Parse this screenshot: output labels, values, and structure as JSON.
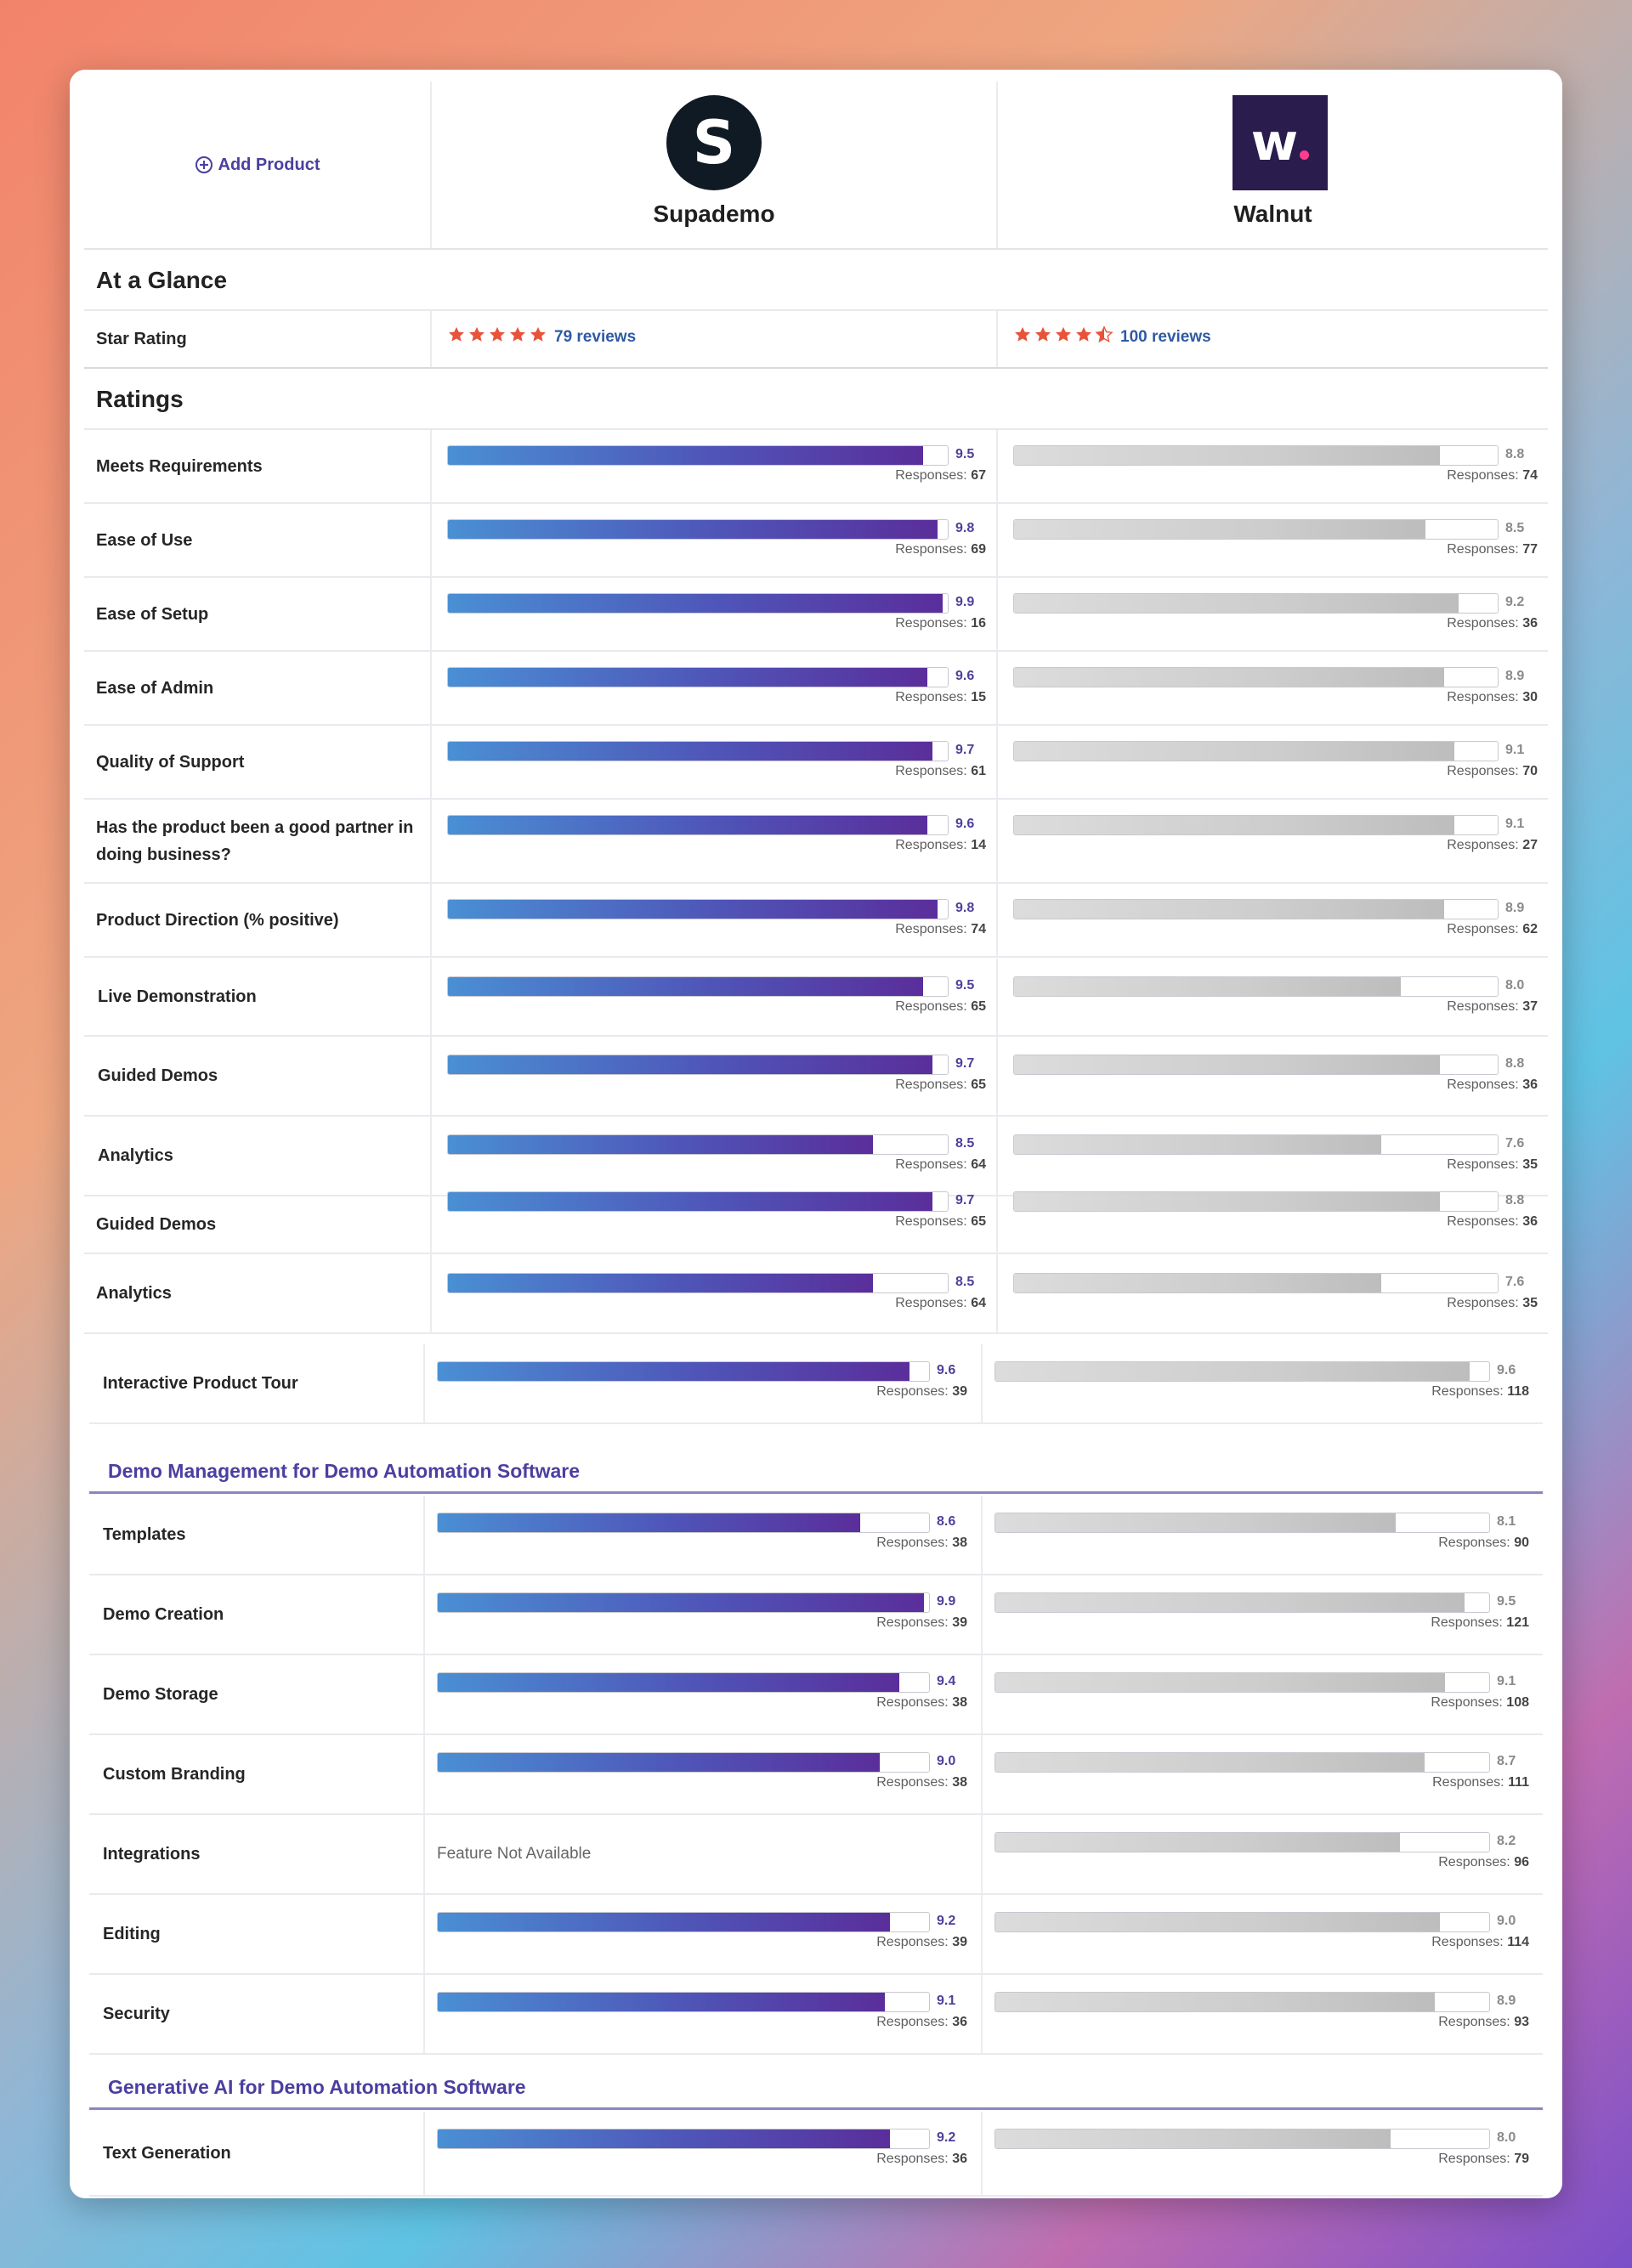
{
  "header": {
    "add_product_label": "Add Product",
    "products": [
      {
        "name": "Supademo",
        "logo_letter": "S",
        "logo_color": "#0f1a24"
      },
      {
        "name": "Walnut",
        "logo_letter": "w",
        "logo_color": "#2a1c4d",
        "logo_dot_color": "#ff3d8f"
      }
    ]
  },
  "glance": {
    "title": "At a Glance",
    "star_rating_label": "Star Rating",
    "a": {
      "stars": 5,
      "reviews": "79 reviews"
    },
    "b": {
      "stars": 4.5,
      "reviews": "100 reviews"
    },
    "star_color": "#e8533a"
  },
  "ratings_title": "Ratings",
  "ratings": [
    {
      "label": "Meets Requirements",
      "a": {
        "score": "9.5",
        "responses": "67"
      },
      "b": {
        "score": "8.8",
        "responses": "74"
      }
    },
    {
      "label": "Ease of Use",
      "a": {
        "score": "9.8",
        "responses": "69"
      },
      "b": {
        "score": "8.5",
        "responses": "77"
      }
    },
    {
      "label": "Ease of Setup",
      "a": {
        "score": "9.9",
        "responses": "16"
      },
      "b": {
        "score": "9.2",
        "responses": "36"
      }
    },
    {
      "label": "Ease of Admin",
      "a": {
        "score": "9.6",
        "responses": "15"
      },
      "b": {
        "score": "8.9",
        "responses": "30"
      }
    },
    {
      "label": "Quality of Support",
      "a": {
        "score": "9.7",
        "responses": "61"
      },
      "b": {
        "score": "9.1",
        "responses": "70"
      }
    },
    {
      "label": "Has the product been a good partner in doing business?",
      "a": {
        "score": "9.6",
        "responses": "14"
      },
      "b": {
        "score": "9.1",
        "responses": "27"
      }
    },
    {
      "label": "Product Direction (% positive)",
      "a": {
        "score": "9.8",
        "responses": "74"
      },
      "b": {
        "score": "8.9",
        "responses": "62"
      }
    }
  ],
  "demo_rows": [
    {
      "label": "Live Demonstration",
      "a": {
        "score": "9.5",
        "responses": "65"
      },
      "b": {
        "score": "8.0",
        "responses": "37"
      }
    },
    {
      "label": "Guided Demos",
      "a": {
        "score": "9.7",
        "responses": "65"
      },
      "b": {
        "score": "8.8",
        "responses": "36"
      }
    },
    {
      "label": "Analytics",
      "a": {
        "score": "8.5",
        "responses": "64"
      },
      "b": {
        "score": "7.6",
        "responses": "35"
      }
    }
  ],
  "overlap_rows": [
    {
      "label": "Guided Demos",
      "a": {
        "score": "9.7",
        "responses": "65"
      },
      "b": {
        "score": "8.8",
        "responses": "36"
      }
    },
    {
      "label": "Analytics",
      "a": {
        "score": "8.5",
        "responses": "64"
      },
      "b": {
        "score": "7.6",
        "responses": "35"
      }
    }
  ],
  "tour_row": {
    "label": "Interactive Product Tour",
    "a": {
      "score": "9.6",
      "responses": "39"
    },
    "b": {
      "score": "9.6",
      "responses": "118"
    }
  },
  "demo_mgmt": {
    "title": "Demo Management for Demo Automation Software",
    "rows": [
      {
        "label": "Templates",
        "a": {
          "score": "8.6",
          "responses": "38"
        },
        "b": {
          "score": "8.1",
          "responses": "90"
        }
      },
      {
        "label": "Demo Creation",
        "a": {
          "score": "9.9",
          "responses": "39"
        },
        "b": {
          "score": "9.5",
          "responses": "121"
        }
      },
      {
        "label": "Demo Storage",
        "a": {
          "score": "9.4",
          "responses": "38"
        },
        "b": {
          "score": "9.1",
          "responses": "108"
        }
      },
      {
        "label": "Custom Branding",
        "a": {
          "score": "9.0",
          "responses": "38"
        },
        "b": {
          "score": "8.7",
          "responses": "111"
        }
      },
      {
        "label": "Integrations",
        "a": {
          "not_available": "Feature Not Available"
        },
        "b": {
          "score": "8.2",
          "responses": "96"
        }
      },
      {
        "label": "Editing",
        "a": {
          "score": "9.2",
          "responses": "39"
        },
        "b": {
          "score": "9.0",
          "responses": "114"
        }
      },
      {
        "label": "Security",
        "a": {
          "score": "9.1",
          "responses": "36"
        },
        "b": {
          "score": "8.9",
          "responses": "93"
        }
      }
    ]
  },
  "gen_ai": {
    "title": "Generative AI for Demo Automation Software",
    "rows": [
      {
        "label": "Text Generation",
        "a": {
          "score": "9.2",
          "responses": "36"
        },
        "b": {
          "score": "8.0",
          "responses": "79"
        }
      }
    ]
  },
  "responses_prefix": "Responses:"
}
